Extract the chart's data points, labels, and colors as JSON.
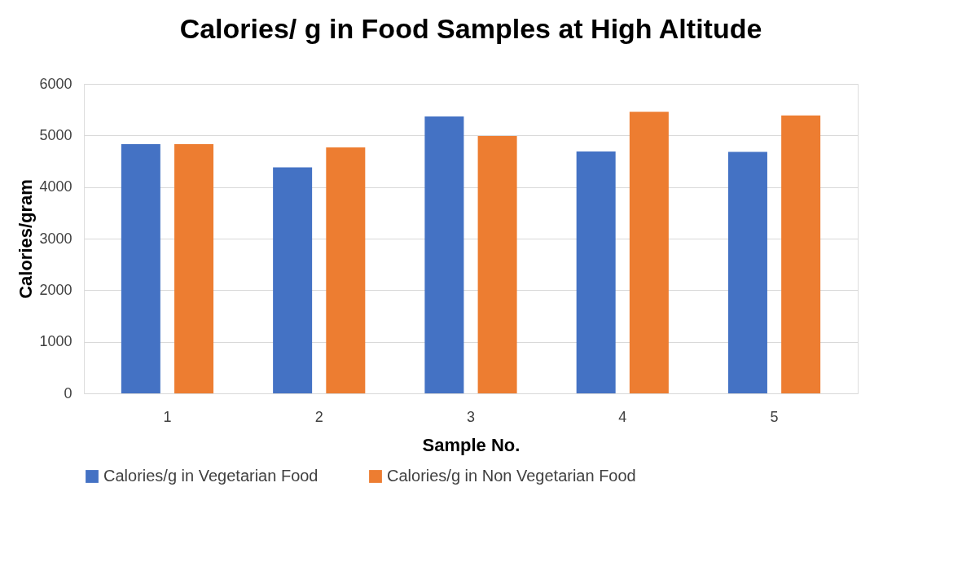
{
  "chart_data": {
    "type": "bar",
    "title": "Calories/ g in Food Samples at  High Altitude",
    "xlabel": "Sample No.",
    "ylabel": "Calories/gram",
    "categories": [
      "1",
      "2",
      "3",
      "4",
      "5"
    ],
    "series": [
      {
        "name": "Calories/g in Vegetarian Food",
        "color": "#4472c4",
        "values": [
          4830,
          4380,
          5370,
          4690,
          4680
        ]
      },
      {
        "name": "Calories/g in Non Vegetarian Food",
        "color": "#ed7d31",
        "values": [
          4830,
          4770,
          4990,
          5460,
          5390
        ]
      }
    ],
    "ylim": [
      0,
      6000
    ],
    "yticks": [
      0,
      1000,
      2000,
      3000,
      4000,
      5000,
      6000
    ],
    "grid": "y",
    "legend": "bottom"
  }
}
